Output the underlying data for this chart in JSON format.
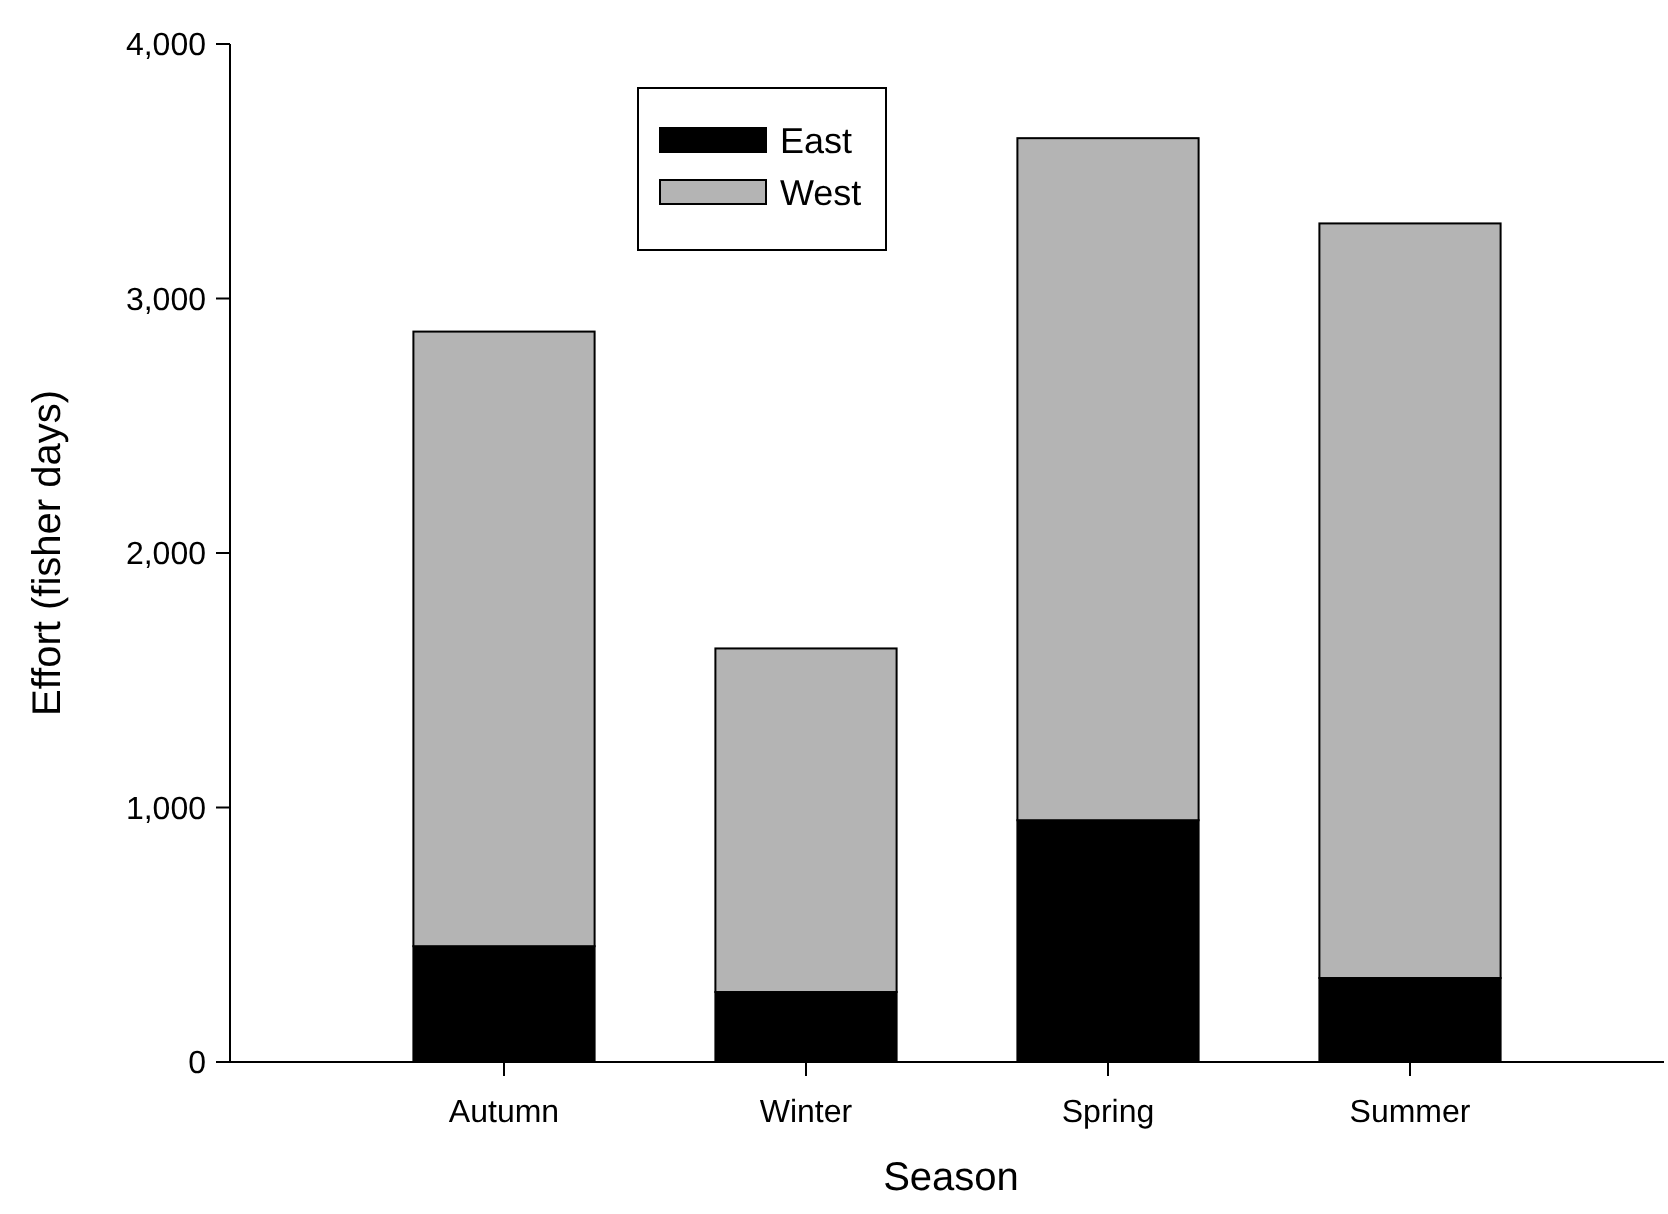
{
  "chart_data": {
    "type": "bar",
    "stacked": true,
    "xlabel": "Season",
    "ylabel": "Effort (fisher days)",
    "categories": [
      "Autumn",
      "Winter",
      "Spring",
      "Summer"
    ],
    "series": [
      {
        "name": "East",
        "color": "#000000",
        "values": [
          455,
          275,
          950,
          330
        ]
      },
      {
        "name": "West",
        "color": "#b4b4b4",
        "values": [
          2415,
          1350,
          2680,
          2965
        ]
      }
    ],
    "ylim": [
      0,
      4000
    ],
    "yticks": [
      {
        "value": 0,
        "label": "0"
      },
      {
        "value": 1000,
        "label": "1,000"
      },
      {
        "value": 2000,
        "label": "2,000"
      },
      {
        "value": 3000,
        "label": "3,000"
      },
      {
        "value": 4000,
        "label": "4,000"
      }
    ],
    "legend": "top",
    "grid": false
  }
}
